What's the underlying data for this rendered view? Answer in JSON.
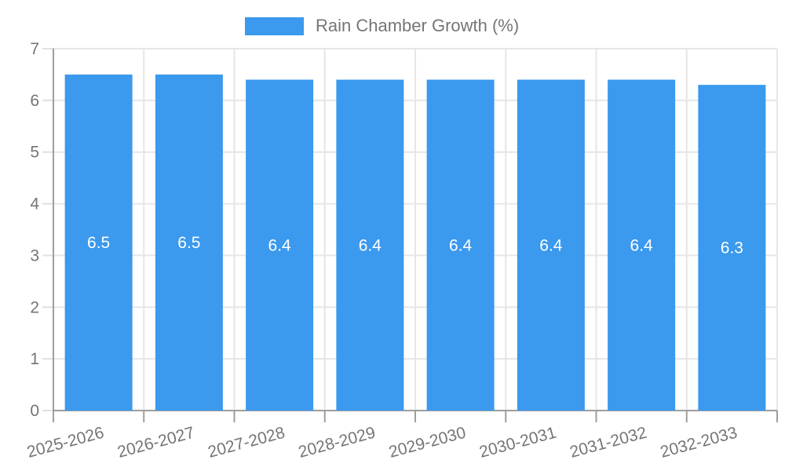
{
  "chart_data": {
    "type": "bar",
    "title": "Rain Chamber Growth (%)",
    "legend_label": "Rain Chamber Growth (%)",
    "legend_position": "top",
    "categories": [
      "2025-2026",
      "2026-2027",
      "2027-2028",
      "2028-2029",
      "2029-2030",
      "2030-2031",
      "2031-2032",
      "2032-2033"
    ],
    "values": [
      6.5,
      6.5,
      6.4,
      6.4,
      6.4,
      6.4,
      6.4,
      6.3
    ],
    "bar_value_labels": [
      "6.5",
      "6.5",
      "6.4",
      "6.4",
      "6.4",
      "6.4",
      "6.4",
      "6.3"
    ],
    "xlabel": "",
    "ylabel": "",
    "ylim": [
      0,
      7
    ],
    "yticks": [
      0,
      1,
      2,
      3,
      4,
      5,
      6,
      7
    ],
    "grid": true,
    "colors": {
      "bar": "#3b99ee",
      "bar_label": "#ffffff",
      "axis_text": "#757575",
      "grid_line": "#e6e6e6",
      "tick_stub": "#e0e0e0",
      "axis_line": "#9e9e9e",
      "background": "#ffffff"
    }
  }
}
